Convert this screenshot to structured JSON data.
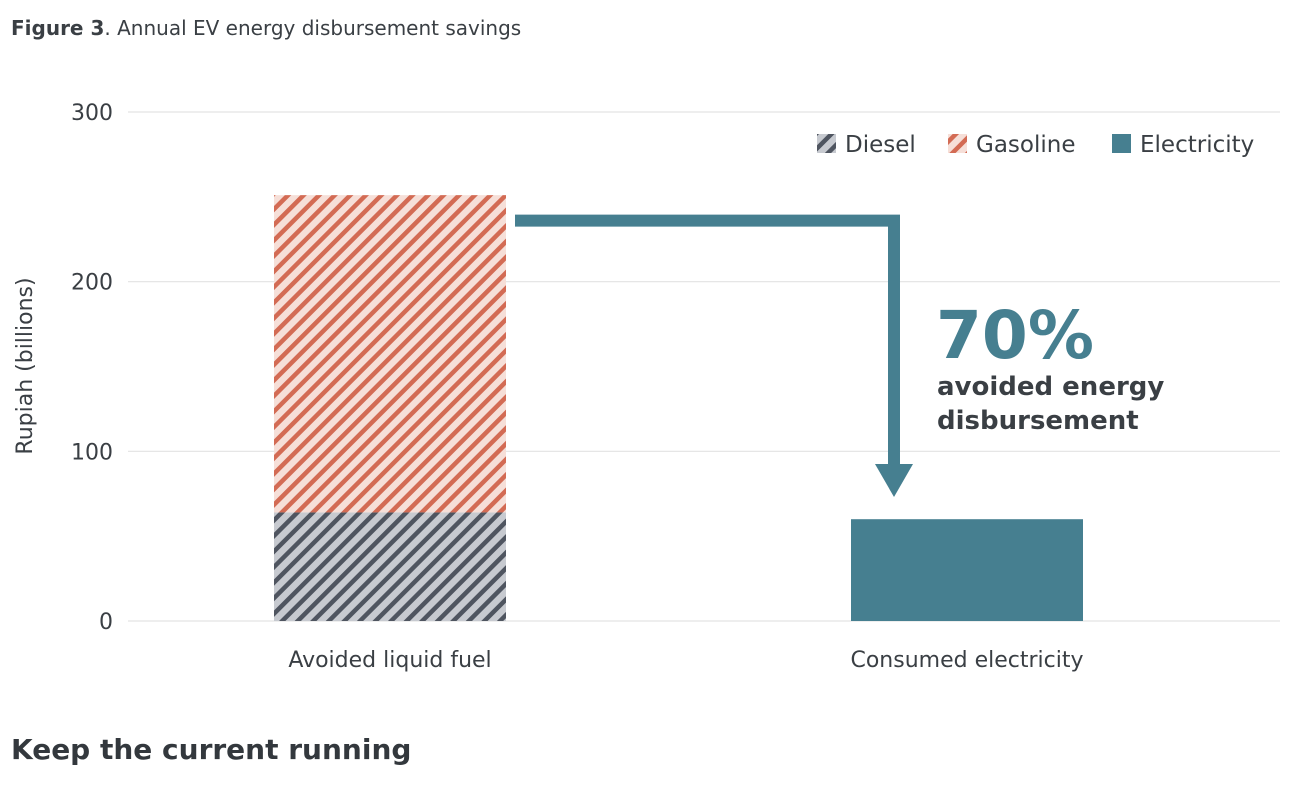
{
  "caption": {
    "label": "Figure 3",
    "text": ". Annual EV energy disbursement savings"
  },
  "section_heading": "Keep the current running",
  "colors": {
    "diesel_stripe": "#4f5560",
    "diesel_bg": "#c7cad0",
    "gasoline_stripe": "#d36b54",
    "gasoline_bg": "#f6dfd8",
    "electricity": "#467f90",
    "arrow": "#467f90",
    "grid": "#e3e3e3",
    "text": "#3a3f44"
  },
  "chart_data": {
    "type": "bar",
    "stacked": true,
    "title": "",
    "xlabel": "",
    "ylabel": "Rupiah (billions)",
    "ylim": [
      0,
      300
    ],
    "yticks": [
      0,
      100,
      200,
      300
    ],
    "grid": true,
    "legend_position": "top-right",
    "categories": [
      "Avoided liquid fuel",
      "Consumed electricity"
    ],
    "series": [
      {
        "name": "Diesel",
        "values": [
          64,
          0
        ],
        "color": "#4f5560",
        "pattern": "hatched"
      },
      {
        "name": "Gasoline",
        "values": [
          187,
          0
        ],
        "color": "#d36b54",
        "pattern": "hatched"
      },
      {
        "name": "Electricity",
        "values": [
          0,
          60
        ],
        "color": "#467f90",
        "pattern": "solid"
      }
    ],
    "annotation": {
      "value": "70%",
      "line1": "avoided energy",
      "line2": "disbursement"
    }
  }
}
